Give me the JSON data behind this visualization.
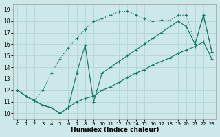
{
  "xlabel": "Humidex (Indice chaleur)",
  "xlim": [
    -0.5,
    23.5
  ],
  "ylim": [
    9.5,
    19.5
  ],
  "xticks": [
    0,
    1,
    2,
    3,
    4,
    5,
    6,
    7,
    8,
    9,
    10,
    11,
    12,
    13,
    14,
    15,
    16,
    17,
    18,
    19,
    20,
    21,
    22,
    23
  ],
  "yticks": [
    10,
    11,
    12,
    13,
    14,
    15,
    16,
    17,
    18,
    19
  ],
  "bg_color": "#cce8e8",
  "grid_color": "#b8d8d8",
  "line_color": "#1a7a6a",
  "line1_x": [
    0,
    1,
    2,
    3,
    4,
    5,
    6,
    7,
    8,
    9,
    10,
    11,
    12,
    13,
    14,
    15,
    16,
    17,
    18,
    19,
    20,
    21,
    22,
    23
  ],
  "line1_y": [
    12.0,
    11.5,
    11.1,
    12.0,
    13.5,
    14.7,
    15.7,
    16.5,
    17.3,
    18.0,
    18.2,
    18.55,
    18.8,
    18.85,
    18.55,
    18.2,
    18.0,
    18.1,
    18.05,
    18.5,
    18.5,
    16.0,
    18.5,
    15.3
  ],
  "line2_x": [
    0,
    1,
    2,
    3,
    4,
    5,
    6,
    7,
    8,
    9,
    10,
    11,
    12,
    13,
    14,
    15,
    16,
    17,
    18,
    19,
    20,
    21,
    22,
    23
  ],
  "line2_y": [
    12.0,
    11.5,
    11.1,
    10.7,
    10.5,
    10.0,
    10.5,
    13.5,
    15.9,
    11.0,
    13.5,
    14.0,
    14.5,
    15.0,
    15.5,
    16.0,
    16.5,
    17.0,
    17.5,
    18.0,
    17.5,
    16.0,
    18.5,
    15.3
  ],
  "line3_x": [
    0,
    1,
    2,
    3,
    4,
    5,
    6,
    7,
    8,
    9,
    10,
    11,
    12,
    13,
    14,
    15,
    16,
    17,
    18,
    19,
    20,
    21,
    22,
    23
  ],
  "line3_y": [
    12.0,
    11.5,
    11.1,
    10.7,
    10.5,
    10.0,
    10.5,
    11.0,
    11.3,
    11.5,
    12.0,
    12.3,
    12.7,
    13.1,
    13.5,
    13.8,
    14.2,
    14.5,
    14.8,
    15.2,
    15.5,
    15.8,
    16.2,
    14.7
  ]
}
